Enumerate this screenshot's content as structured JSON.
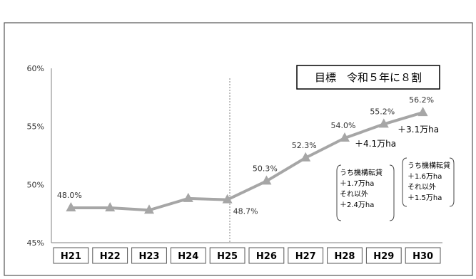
{
  "chart_data": {
    "type": "line",
    "categories": [
      "H21",
      "H22",
      "H23",
      "H24",
      "H25",
      "H26",
      "H27",
      "H28",
      "H29",
      "H30"
    ],
    "values": [
      48.0,
      48.0,
      47.8,
      48.8,
      48.7,
      50.3,
      52.3,
      54.0,
      55.2,
      56.2
    ],
    "data_labels": [
      "48.0%",
      null,
      null,
      null,
      "48.7%",
      "50.3%",
      "52.3%",
      "54.0%",
      "55.2%",
      "56.2%"
    ],
    "y_ticks": [
      "45%",
      "50%",
      "55%",
      "60%"
    ],
    "ylim": [
      45,
      60
    ],
    "grid": false,
    "series_color": "#a6a6a6",
    "divider_after": "H25",
    "target_box": "目標　令和５年に８割",
    "increment_labels": [
      "＋4.1万ha",
      "＋3.1万ha"
    ],
    "breakdown_notes": [
      [
        "うち機構転貸",
        "＋1.7万ha",
        "それ以外",
        "＋2.4万ha"
      ],
      [
        "うち機構転貸",
        "＋1.6万ha",
        "それ以外",
        "＋1.5万ha"
      ]
    ]
  }
}
